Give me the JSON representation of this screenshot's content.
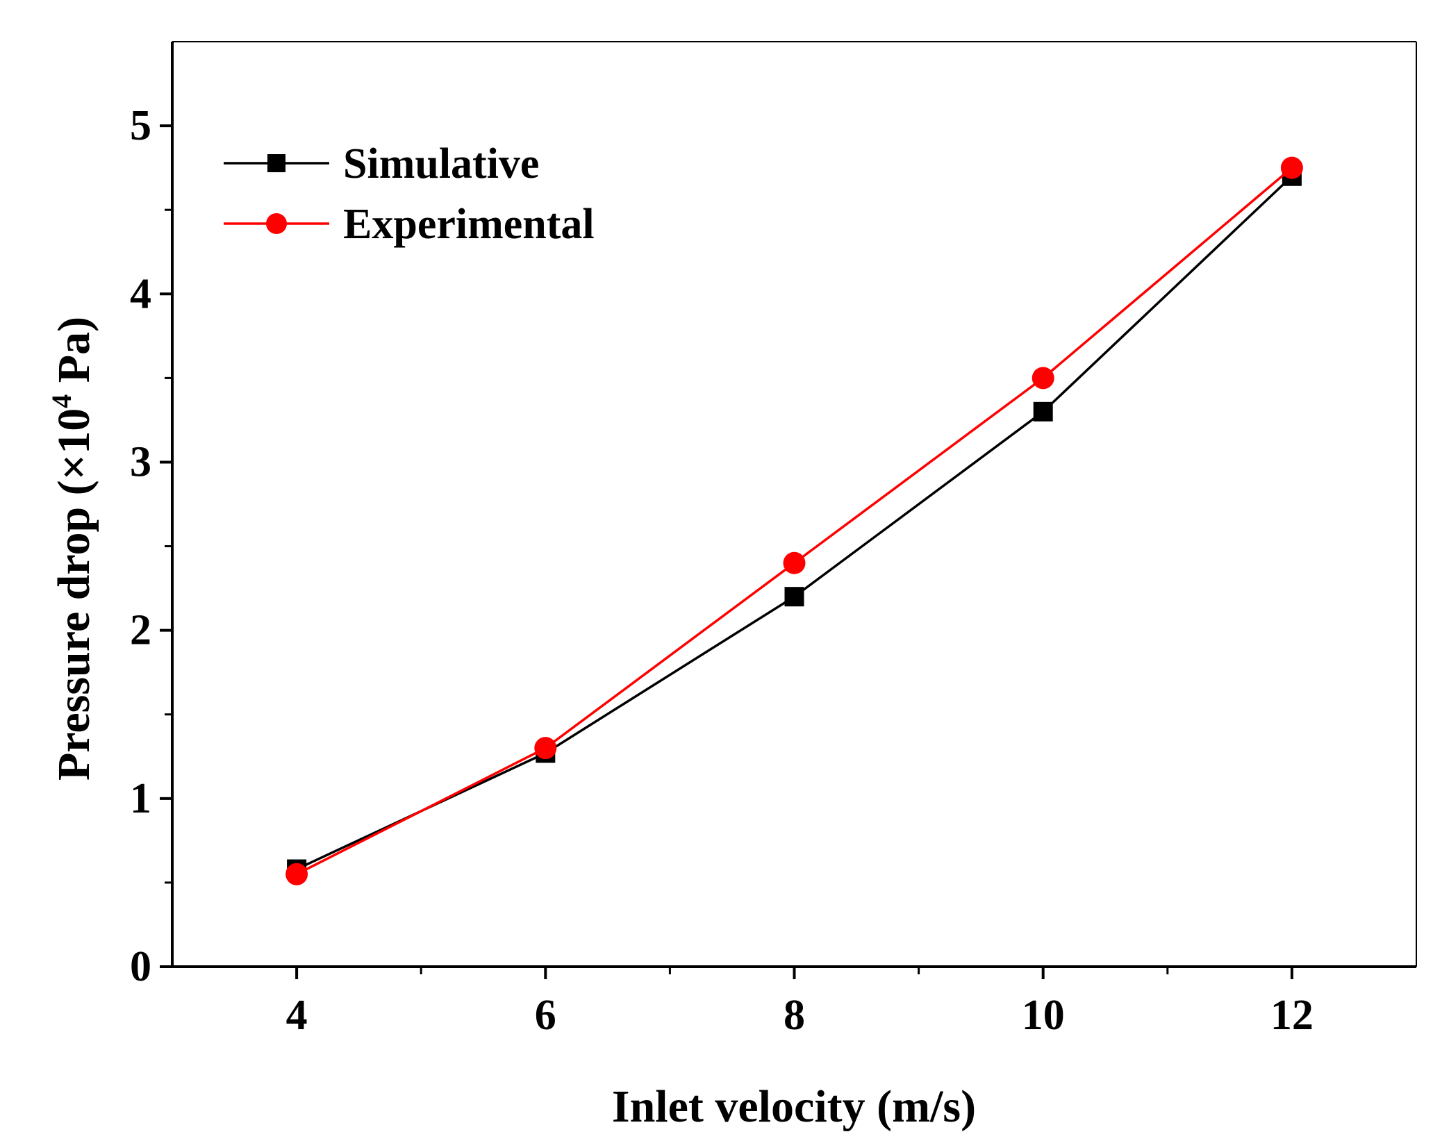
{
  "chart_data": {
    "type": "line",
    "title": "",
    "xlabel": "Inlet velocity (m/s)",
    "ylabel_main": "Pressure drop (×10",
    "ylabel_sup": "4",
    "ylabel_tail": " Pa)",
    "xlim": [
      3,
      13
    ],
    "ylim": [
      0,
      5.5
    ],
    "xticks": [
      4,
      6,
      8,
      10,
      12
    ],
    "xticks_minor": [
      5,
      7,
      9,
      11
    ],
    "yticks": [
      0,
      1,
      2,
      3,
      4,
      5
    ],
    "yticks_minor": [
      0.5,
      1.5,
      2.5,
      3.5,
      4.5
    ],
    "xtick_labels": [
      "4",
      "6",
      "8",
      "10",
      "12"
    ],
    "ytick_labels": [
      "0",
      "1",
      "2",
      "3",
      "4",
      "5"
    ],
    "legend_position": "top-left",
    "grid": false,
    "x": [
      4,
      6,
      8,
      10,
      12
    ],
    "series": [
      {
        "name": "Simulative",
        "marker": "square",
        "color": "#000000",
        "values": [
          0.58,
          1.27,
          2.2,
          3.3,
          4.7
        ]
      },
      {
        "name": "Experimental",
        "marker": "circle",
        "color": "#ff0000",
        "values": [
          0.55,
          1.3,
          2.4,
          3.5,
          4.75
        ]
      }
    ]
  }
}
